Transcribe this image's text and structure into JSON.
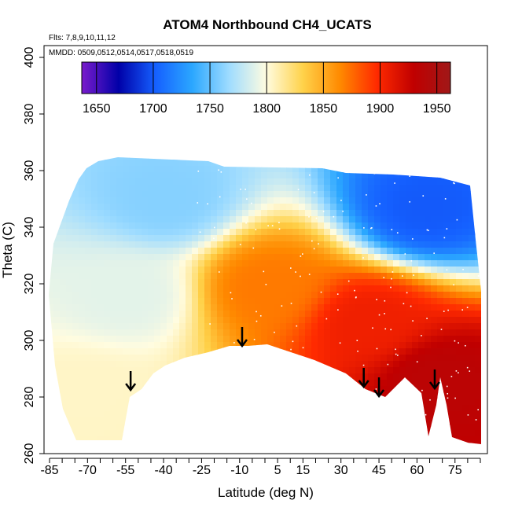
{
  "chart_data": {
    "type": "heatmap",
    "title": "ATOM4 Northbound CH4_UCATS",
    "annotations": [
      "Flts: 7,8,9,10,11,12",
      "MMDD: 0509,0512,0514,0517,0518,0519"
    ],
    "xlabel": "Latitude (deg N)",
    "ylabel": "Theta (C)",
    "xlim": [
      -87,
      85
    ],
    "ylim": [
      260,
      405
    ],
    "x_ticks": [
      -85,
      -70,
      -55,
      -40,
      -25,
      -10,
      5,
      15,
      30,
      45,
      60,
      75
    ],
    "y_ticks": [
      260,
      280,
      300,
      320,
      340,
      360,
      380,
      400
    ],
    "colorbar": {
      "range": [
        1637,
        1962
      ],
      "ticks": [
        1650,
        1700,
        1750,
        1800,
        1850,
        1900,
        1950
      ],
      "colors": [
        "#7a1ccc",
        "#0000a8",
        "#1560ff",
        "#2ba7ff",
        "#9fdcff",
        "#fffce0",
        "#ffd24a",
        "#ff8a00",
        "#ff2a00",
        "#c00000",
        "#a01818"
      ]
    },
    "field": {
      "description_free": true,
      "regions": [
        {
          "lat": [
            -85,
            -55
          ],
          "theta": [
            265,
            300
          ],
          "ch4": 1805
        },
        {
          "lat": [
            -80,
            -30
          ],
          "theta": [
            300,
            335
          ],
          "ch4": 1790
        },
        {
          "lat": [
            -60,
            -20
          ],
          "theta": [
            340,
            362
          ],
          "ch4": 1760
        },
        {
          "lat": [
            -20,
            20
          ],
          "theta": [
            300,
            340
          ],
          "ch4": 1870
        },
        {
          "lat": [
            20,
            60
          ],
          "theta": [
            285,
            330
          ],
          "ch4": 1905
        },
        {
          "lat": [
            55,
            80
          ],
          "theta": [
            265,
            310
          ],
          "ch4": 1935
        },
        {
          "lat": [
            45,
            80
          ],
          "theta": [
            335,
            360
          ],
          "ch4": 1700
        }
      ]
    },
    "arrows_lat": [
      -53,
      -9,
      39,
      45,
      67
    ]
  }
}
